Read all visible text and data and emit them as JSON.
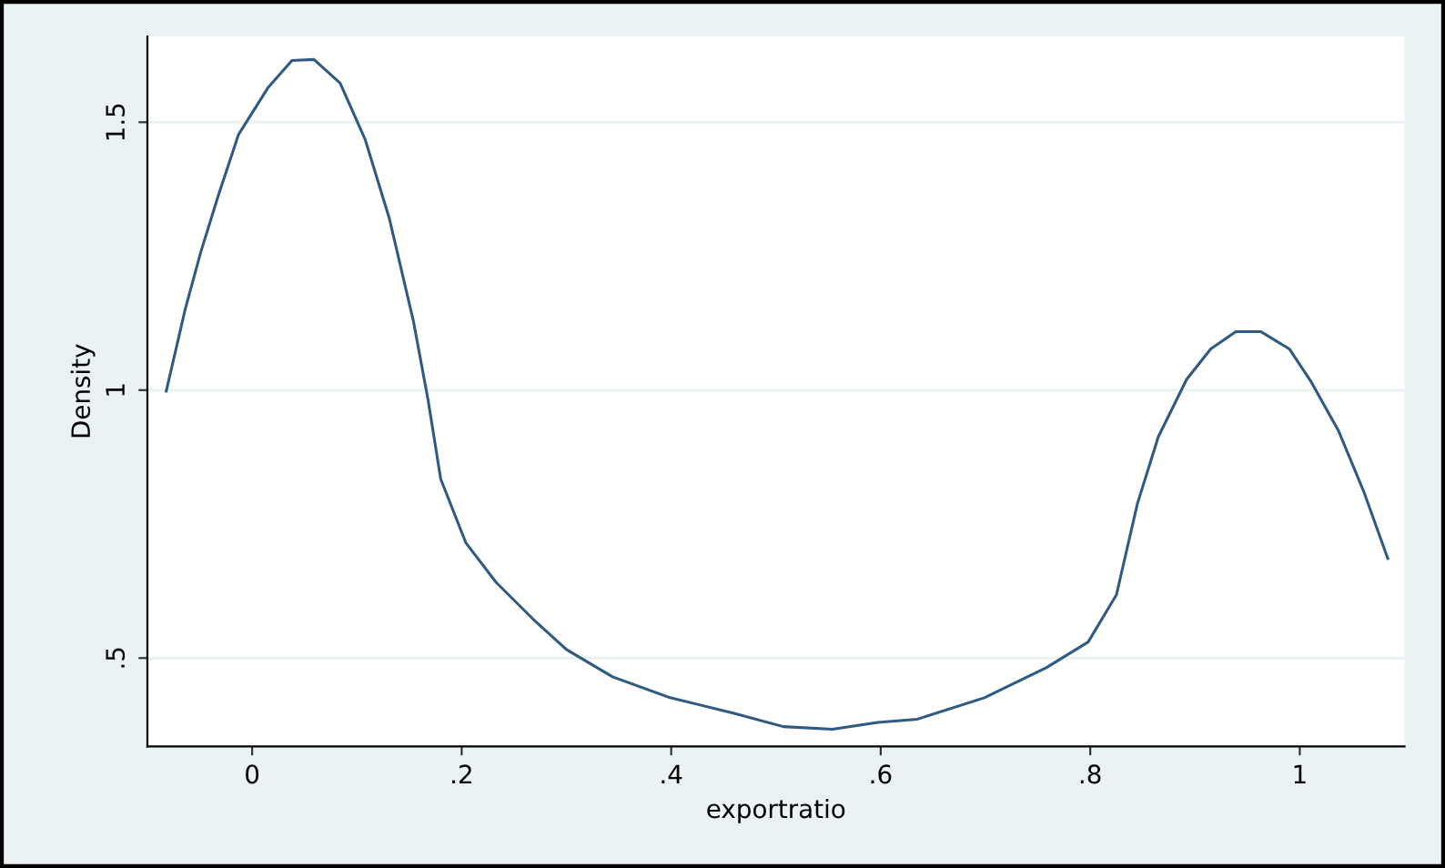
{
  "chart_data": {
    "type": "line",
    "xlabel": "exportratio",
    "ylabel": "Density",
    "x": [
      -0.082,
      -0.064,
      -0.049,
      -0.032,
      -0.013,
      0.015,
      0.038,
      0.059,
      0.084,
      0.108,
      0.131,
      0.154,
      0.168,
      0.18,
      0.204,
      0.233,
      0.268,
      0.3,
      0.344,
      0.399,
      0.46,
      0.507,
      0.554,
      0.597,
      0.635,
      0.699,
      0.758,
      0.798,
      0.825,
      0.845,
      0.865,
      0.892,
      0.915,
      0.939,
      0.963,
      0.99,
      1.011,
      1.037,
      1.061,
      1.084
    ],
    "series": [
      {
        "color": "#2f5a83",
        "values": [
          0.998,
          1.15,
          1.258,
          1.365,
          1.477,
          1.564,
          1.615,
          1.617,
          1.573,
          1.467,
          1.32,
          1.128,
          0.981,
          0.834,
          0.715,
          0.641,
          0.573,
          0.516,
          0.465,
          0.426,
          0.397,
          0.372,
          0.367,
          0.38,
          0.386,
          0.426,
          0.482,
          0.53,
          0.618,
          0.788,
          0.913,
          1.02,
          1.077,
          1.109,
          1.109,
          1.077,
          1.015,
          0.924,
          0.811,
          0.686
        ]
      }
    ],
    "xlim": [
      -0.1,
      1.1
    ],
    "ylim": [
      0.335,
      1.66
    ],
    "xticks": [
      0,
      {
        "value": 0.2,
        "label": ".2"
      },
      {
        "value": 0.4,
        "label": ".4"
      },
      {
        "value": 0.6,
        "label": ".6"
      },
      {
        "value": 0.8,
        "label": ".8"
      },
      1
    ],
    "yticks": [
      {
        "value": 0.5,
        "label": ".5"
      },
      1,
      1.5
    ],
    "grid": "y",
    "marker": "none",
    "line_style": "solid"
  }
}
